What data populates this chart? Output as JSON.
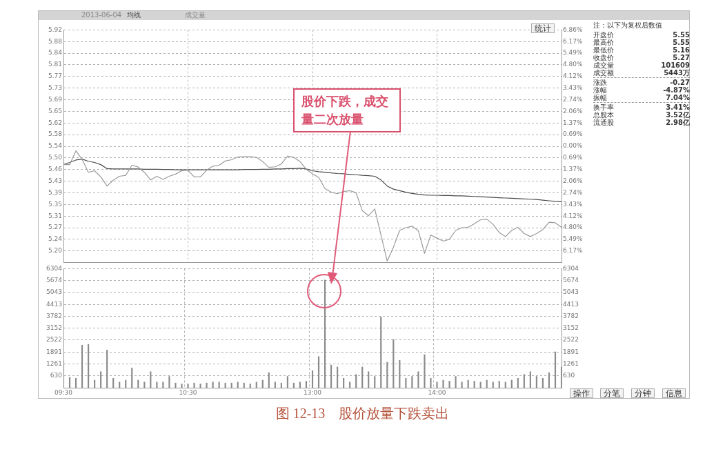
{
  "chart_data": [
    {
      "type": "line",
      "subtitle": "2013-06-04",
      "legend": "top left",
      "grid": true,
      "marker": "none",
      "tick_labels": "y",
      "categories": [
        null,
        null,
        null,
        null,
        null,
        null,
        null,
        null,
        null,
        null,
        null,
        null,
        null,
        null,
        null,
        null,
        null,
        null,
        null,
        null,
        null,
        null,
        null,
        null,
        null,
        null,
        null,
        null,
        null,
        null,
        null,
        null,
        null,
        null,
        null,
        null,
        null,
        null,
        null,
        null,
        null,
        null,
        null,
        null,
        null,
        null,
        null,
        null,
        null,
        null,
        null,
        null,
        null,
        null,
        null,
        null,
        null,
        null,
        null,
        null,
        null,
        null,
        null,
        null,
        null,
        null,
        null,
        null,
        null,
        null,
        null,
        null,
        null,
        null,
        null,
        null,
        null,
        null,
        null,
        null,
        null
      ],
      "ylim": [
        5.16,
        5.92
      ],
      "yticks": [
        {
          "value": 5.198,
          "label": "5.20"
        },
        {
          "value": 5.236,
          "label": "5.24"
        },
        {
          "value": 5.274,
          "label": "5.27"
        },
        {
          "value": 5.312,
          "label": "5.31"
        },
        5.35,
        {
          "value": 5.388,
          "label": "5.39"
        },
        {
          "value": 5.426,
          "label": "5.43"
        },
        {
          "value": 5.464,
          "label": "5.46"
        },
        {
          "value": 5.502,
          "label": "5.50"
        },
        5.54,
        {
          "value": 5.578,
          "label": "5.58"
        },
        {
          "value": 5.616,
          "label": "5.62"
        },
        {
          "value": 5.654,
          "label": "5.65"
        },
        {
          "value": 5.692,
          "label": "5.69"
        },
        5.73,
        {
          "value": 5.768,
          "label": "5.77"
        },
        {
          "value": 5.806,
          "label": "5.81"
        },
        {
          "value": 5.844,
          "label": "5.84"
        },
        {
          "value": 5.882,
          "label": "5.88"
        },
        5.92
      ],
      "y2lim": [
        -6.86,
        6.86
      ],
      "y2ticks": [
        {
          "value": -6.174,
          "label": "6.17%"
        },
        {
          "value": -5.488,
          "label": "5.49%"
        },
        {
          "value": -4.802,
          "label": "4.80%"
        },
        {
          "value": -4.116,
          "label": "4.12%"
        },
        {
          "value": -3.43,
          "label": "3.43%"
        },
        {
          "value": -2.744,
          "label": "2.74%"
        },
        {
          "value": -2.058,
          "label": "2.06%"
        },
        {
          "value": -1.372,
          "label": "1.37%"
        },
        {
          "value": -0.686,
          "label": "0.69%"
        },
        {
          "value": 0,
          "label": "0.00%"
        },
        {
          "value": 0.686,
          "label": "0.69%"
        },
        {
          "value": 1.372,
          "label": "1.37%"
        },
        {
          "value": 2.058,
          "label": "2.06%"
        },
        {
          "value": 2.744,
          "label": "2.74%"
        },
        {
          "value": 3.43,
          "label": "3.43%"
        },
        {
          "value": 4.116,
          "label": "4.12%"
        },
        {
          "value": 4.802,
          "label": "4.80%"
        },
        {
          "value": 5.488,
          "label": "5.49%"
        },
        {
          "value": 6.174,
          "label": "6.17%"
        },
        {
          "value": 6.86,
          "label": "6.86%"
        }
      ],
      "annotations": [
        "股价下跌，成交量二次放量"
      ],
      "series": [
        {
          "color": "#9a9a9a",
          "values": [
            5.48,
            5.48,
            5.525,
            5.497,
            5.455,
            5.46,
            5.44,
            5.41,
            5.429,
            5.442,
            5.445,
            5.478,
            5.472,
            5.455,
            5.43,
            5.442,
            5.432,
            5.442,
            5.449,
            5.46,
            5.462,
            5.44,
            5.44,
            5.462,
            5.475,
            5.478,
            5.492,
            5.496,
            5.505,
            5.506,
            5.506,
            5.504,
            5.49,
            5.471,
            5.473,
            5.482,
            5.508,
            5.504,
            5.49,
            5.465,
            5.45,
            5.438,
            5.402,
            5.39,
            5.385,
            5.392,
            5.395,
            5.388,
            5.33,
            5.313,
            5.335,
            5.25,
            5.165,
            5.21,
            5.265,
            5.274,
            5.279,
            5.264,
            5.19,
            5.25,
            5.24,
            5.23,
            5.236,
            5.265,
            5.274,
            5.275,
            5.287,
            5.3,
            5.302,
            5.285,
            5.258,
            5.245,
            5.265,
            5.275,
            5.255,
            5.245,
            5.255,
            5.268,
            5.292,
            5.29,
            5.275
          ]
        },
        {
          "name": "均线",
          "color": "#4a4a4a",
          "values": [
            5.48,
            5.487,
            5.495,
            5.498,
            5.491,
            5.487,
            5.48,
            5.467,
            5.466,
            5.466,
            5.466,
            5.466,
            5.466,
            5.465,
            5.465,
            5.465,
            5.464,
            5.464,
            5.463,
            5.463,
            5.463,
            5.463,
            5.463,
            5.463,
            5.463,
            5.463,
            5.463,
            5.463,
            5.463,
            5.464,
            5.464,
            5.464,
            5.465,
            5.465,
            5.466,
            5.466,
            5.467,
            5.467,
            5.468,
            5.466,
            5.46,
            5.457,
            5.455,
            5.453,
            5.451,
            5.45,
            5.448,
            5.447,
            5.445,
            5.444,
            5.442,
            5.43,
            5.41,
            5.4,
            5.395,
            5.39,
            5.386,
            5.383,
            5.381,
            5.38,
            5.38,
            5.379,
            5.379,
            5.378,
            5.378,
            5.377,
            5.376,
            5.375,
            5.374,
            5.373,
            5.372,
            5.371,
            5.37,
            5.369,
            5.368,
            5.367,
            5.366,
            5.364,
            5.362,
            5.36,
            5.359
          ]
        }
      ]
    },
    {
      "type": "bar",
      "legend": "top left",
      "grid": true,
      "categories": [
        "09:30",
        null,
        null,
        null,
        null,
        null,
        null,
        null,
        null,
        null,
        null,
        null,
        null,
        null,
        null,
        null,
        null,
        null,
        null,
        null,
        "10:30",
        null,
        null,
        null,
        null,
        null,
        null,
        null,
        null,
        null,
        null,
        null,
        null,
        null,
        null,
        null,
        null,
        null,
        null,
        null,
        "13:00",
        null,
        null,
        null,
        null,
        null,
        null,
        null,
        null,
        null,
        null,
        null,
        null,
        null,
        null,
        null,
        null,
        null,
        null,
        null,
        "14:00",
        null,
        null,
        null,
        null,
        null,
        null,
        null,
        null,
        null,
        null,
        null,
        null,
        null,
        null,
        null,
        null,
        null,
        null,
        null,
        null
      ],
      "ylim": [
        0,
        6304
      ],
      "yticks": [
        630,
        1261,
        1891,
        2522,
        3152,
        3782,
        4413,
        5043,
        5674,
        6304
      ],
      "y2lim": [
        0,
        6304
      ],
      "y2ticks": [
        630,
        1261,
        1891,
        2522,
        3152,
        3782,
        4413,
        5043,
        5674,
        6304
      ],
      "annotations": [
        "图 12-13　股价放量下跌卖出"
      ],
      "series": [
        {
          "name": "成交量",
          "color": "#8a8a8a",
          "values": [
            1450,
            550,
            500,
            2250,
            2300,
            400,
            850,
            2000,
            500,
            300,
            400,
            1050,
            400,
            300,
            850,
            300,
            300,
            600,
            250,
            200,
            200,
            250,
            200,
            250,
            300,
            300,
            250,
            250,
            300,
            250,
            200,
            300,
            400,
            800,
            300,
            250,
            600,
            250,
            300,
            350,
            900,
            1650,
            5700,
            1200,
            1100,
            500,
            300,
            700,
            1100,
            850,
            600,
            3750,
            1350,
            2550,
            1450,
            500,
            600,
            850,
            1750,
            500,
            300,
            400,
            350,
            600,
            300,
            400,
            350,
            300,
            400,
            300,
            350,
            300,
            400,
            500,
            700,
            850,
            600,
            500,
            800,
            1900,
            1100
          ]
        }
      ]
    },
    {
      "type": "other",
      "title": "注：以下为复权后数值",
      "categories": [
        "开盘价",
        "最高价",
        "最低价",
        "收盘价",
        "成交量",
        "成交额",
        "涨跌",
        "涨幅",
        "振幅",
        "换手率",
        "总股本",
        "流通股"
      ],
      "value_labels": [
        "5.55",
        "5.55",
        "5.16",
        "5.27",
        "101609",
        "5443万",
        "-0.27",
        "-4.87%",
        "7.04%",
        "3.41%",
        "3.52亿",
        "2.98亿"
      ],
      "annotations": [
        "统计",
        "操作",
        "分笔",
        "分钟",
        "信息"
      ]
    }
  ]
}
